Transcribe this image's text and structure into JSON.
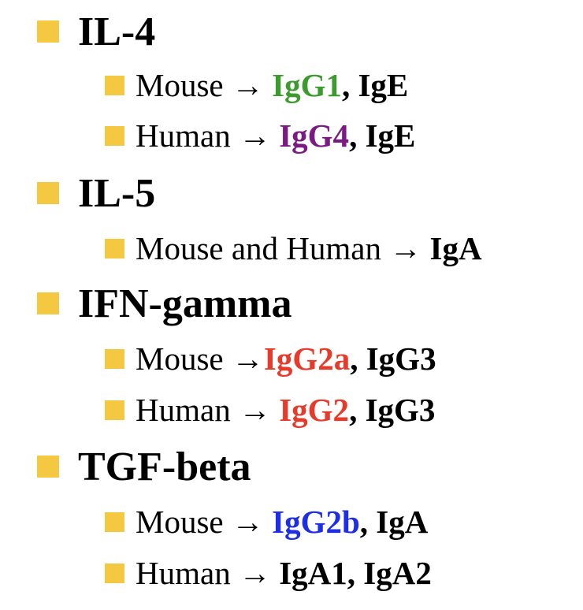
{
  "items": [
    {
      "title": "IL-4",
      "lines": [
        [
          "Mouse → ",
          "IgG1",
          ", IgE"
        ],
        [
          "Human → ",
          "IgG4",
          ", IgE"
        ]
      ]
    },
    {
      "title": "IL-5",
      "lines": [
        [
          "Mouse and Human → ",
          "IgA"
        ]
      ]
    },
    {
      "title": "IFN-gamma",
      "lines": [
        [
          "Mouse →",
          "IgG2a",
          ", IgG3"
        ],
        [
          "Human → ",
          "IgG2",
          ", IgG3"
        ]
      ]
    },
    {
      "title": "TGF-beta",
      "lines": [
        [
          "Mouse → ",
          "IgG2b",
          ", IgA"
        ],
        [
          "Human → ",
          "IgA1, IgA2"
        ]
      ]
    }
  ]
}
